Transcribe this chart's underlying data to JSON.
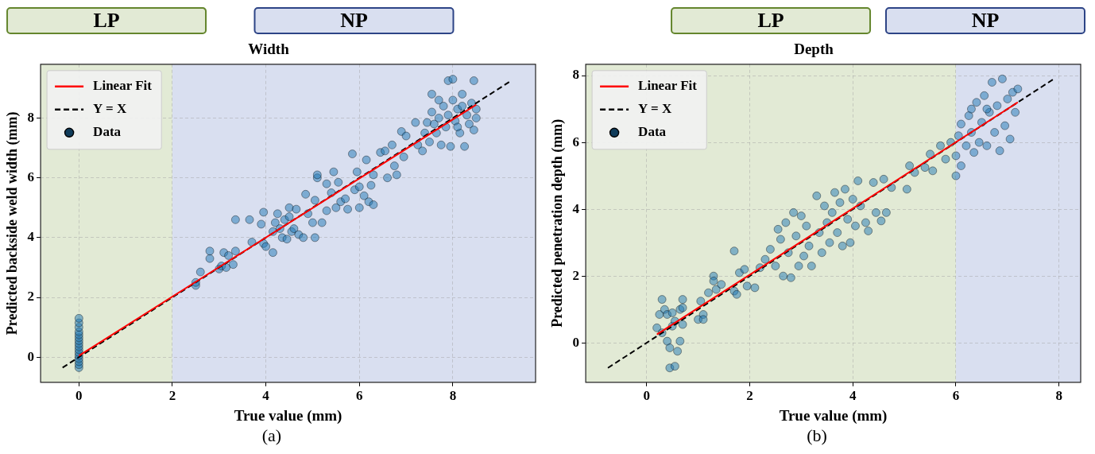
{
  "chart_data": [
    {
      "type": "scatter",
      "title": "Width",
      "xlabel": "True value (mm)",
      "ylabel": "Predicted backside weld width (mm)",
      "annotations": [
        "(a)"
      ],
      "xlim": [
        -0.82,
        9.77
      ],
      "ylim": [
        -0.84,
        9.8
      ],
      "xticks": [
        0,
        2,
        4,
        6,
        8
      ],
      "yticks": [
        0,
        2,
        4,
        6,
        8
      ],
      "grid": true,
      "legend": "top left",
      "bands": [
        {
          "axis": "x",
          "from": -0.82,
          "to": 2,
          "label": "LP",
          "color": "#e2ead5"
        },
        {
          "axis": "x",
          "from": 2,
          "to": 9.77,
          "label": "NP",
          "color": "#d9dff0"
        }
      ],
      "series": [
        {
          "name": "Linear Fit",
          "type": "line",
          "marker": "none",
          "color": "#ff0000",
          "line_style": "solid",
          "x": [
            0,
            8.5
          ],
          "values": [
            0.05,
            8.45
          ]
        },
        {
          "name": "Y = X",
          "type": "line",
          "marker": "none",
          "color": "#000000",
          "line_style": "dashed",
          "x": [
            -0.35,
            9.25
          ],
          "values": [
            -0.35,
            9.25
          ]
        },
        {
          "name": "Data",
          "marker": "circle",
          "color": "#1f77b4",
          "x": [
            0,
            0,
            0,
            0,
            0,
            0,
            0,
            0,
            0,
            0,
            0,
            0,
            0,
            0,
            0,
            0,
            2.5,
            2.5,
            2.6,
            2.8,
            2.8,
            3.0,
            3.05,
            3.1,
            3.15,
            3.2,
            3.3,
            3.35,
            3.35,
            3.65,
            3.7,
            3.9,
            3.95,
            3.95,
            4.0,
            4.15,
            4.15,
            4.2,
            4.25,
            4.3,
            4.35,
            4.4,
            4.45,
            4.5,
            4.5,
            4.55,
            4.6,
            4.65,
            4.7,
            4.8,
            4.85,
            4.9,
            5.0,
            5.05,
            5.05,
            5.1,
            5.1,
            5.2,
            5.3,
            5.3,
            5.4,
            5.45,
            5.5,
            5.55,
            5.6,
            5.7,
            5.75,
            5.85,
            5.9,
            5.95,
            6.0,
            6.0,
            6.1,
            6.15,
            6.2,
            6.25,
            6.3,
            6.3,
            6.45,
            6.55,
            6.6,
            6.7,
            6.75,
            6.8,
            6.9,
            6.95,
            7.0,
            7.2,
            7.25,
            7.35,
            7.4,
            7.45,
            7.5,
            7.55,
            7.55,
            7.6,
            7.65,
            7.7,
            7.75,
            7.8,
            7.85,
            7.9,
            7.95,
            8.0,
            8.0,
            8.05,
            8.1,
            8.15,
            8.2,
            8.25,
            8.3,
            8.35,
            8.4,
            8.45,
            8.45,
            8.5,
            8.5,
            7.9,
            8.1,
            8.2,
            7.7
          ],
          "values": [
            -0.35,
            -0.25,
            -0.15,
            -0.05,
            0.05,
            0.15,
            0.25,
            0.35,
            0.45,
            0.55,
            0.65,
            0.75,
            0.85,
            1.0,
            1.15,
            1.3,
            2.4,
            2.5,
            2.85,
            3.3,
            3.55,
            2.95,
            3.05,
            3.5,
            3.0,
            3.4,
            3.1,
            4.6,
            3.55,
            4.6,
            3.85,
            4.45,
            3.8,
            4.85,
            3.7,
            3.5,
            4.2,
            4.5,
            4.8,
            4.3,
            4.0,
            4.6,
            3.95,
            4.7,
            5.0,
            4.2,
            4.3,
            4.95,
            4.1,
            4.0,
            5.45,
            4.8,
            4.5,
            5.25,
            4.0,
            6.0,
            6.1,
            4.5,
            5.8,
            4.9,
            5.5,
            6.2,
            5.0,
            5.85,
            5.2,
            5.3,
            4.95,
            6.8,
            5.6,
            6.2,
            5.0,
            5.7,
            5.4,
            6.6,
            5.2,
            5.75,
            5.1,
            6.1,
            6.85,
            6.9,
            6.0,
            7.1,
            6.4,
            6.1,
            7.55,
            6.7,
            7.4,
            7.85,
            7.1,
            6.9,
            7.5,
            7.85,
            7.2,
            8.2,
            8.8,
            7.8,
            7.5,
            8.0,
            7.1,
            8.4,
            7.7,
            9.25,
            7.05,
            8.6,
            9.3,
            7.9,
            8.3,
            7.5,
            8.8,
            7.05,
            8.1,
            7.8,
            8.5,
            9.25,
            7.6,
            8.3,
            8.0,
            8.1,
            7.7,
            8.4,
            8.6
          ]
        }
      ]
    },
    {
      "type": "scatter",
      "title": "Depth",
      "xlabel": "True value (mm)",
      "ylabel": "Predicted penetration depth (mm)",
      "annotations": [
        "(b)"
      ],
      "xlim": [
        -1.18,
        8.42
      ],
      "ylim": [
        -1.18,
        8.34
      ],
      "xticks": [
        0,
        2,
        4,
        6,
        8
      ],
      "yticks": [
        0,
        2,
        4,
        6,
        8
      ],
      "grid": true,
      "legend": "top left",
      "bands": [
        {
          "axis": "x",
          "from": -1.18,
          "to": 6,
          "label": "LP",
          "color": "#e2ead5"
        },
        {
          "axis": "x",
          "from": 6,
          "to": 8.42,
          "label": "NP",
          "color": "#d9dff0"
        }
      ],
      "series": [
        {
          "name": "Linear Fit",
          "type": "line",
          "marker": "none",
          "color": "#ff0000",
          "line_style": "solid",
          "x": [
            0.2,
            7.2
          ],
          "values": [
            0.25,
            7.2
          ]
        },
        {
          "name": "Y = X",
          "type": "line",
          "marker": "none",
          "color": "#000000",
          "line_style": "dashed",
          "x": [
            -0.75,
            7.9
          ],
          "values": [
            -0.75,
            7.9
          ]
        },
        {
          "name": "Data",
          "marker": "circle",
          "color": "#1f77b4",
          "x": [
            0.2,
            0.25,
            0.3,
            0.3,
            0.35,
            0.4,
            0.4,
            0.45,
            0.45,
            0.5,
            0.5,
            0.55,
            0.55,
            0.6,
            0.65,
            0.65,
            0.7,
            0.7,
            0.7,
            1.0,
            1.05,
            1.1,
            1.1,
            1.2,
            1.3,
            1.3,
            1.35,
            1.45,
            1.7,
            1.7,
            1.75,
            1.8,
            1.9,
            1.95,
            2.1,
            2.2,
            2.3,
            2.4,
            2.5,
            2.55,
            2.6,
            2.65,
            2.7,
            2.75,
            2.8,
            2.85,
            2.9,
            2.95,
            3.0,
            3.05,
            3.1,
            3.15,
            3.2,
            3.3,
            3.35,
            3.4,
            3.45,
            3.5,
            3.55,
            3.6,
            3.65,
            3.7,
            3.75,
            3.8,
            3.85,
            3.9,
            3.95,
            4.0,
            4.05,
            4.1,
            4.15,
            4.25,
            4.3,
            4.4,
            4.45,
            4.55,
            4.6,
            4.65,
            4.75,
            5.05,
            5.1,
            5.2,
            5.4,
            5.5,
            5.55,
            5.7,
            5.8,
            5.9,
            6.0,
            6.0,
            6.05,
            6.1,
            6.1,
            6.2,
            6.25,
            6.3,
            6.35,
            6.4,
            6.45,
            6.5,
            6.55,
            6.6,
            6.65,
            6.7,
            6.75,
            6.8,
            6.85,
            6.9,
            6.95,
            7.0,
            7.05,
            7.1,
            7.15,
            7.2,
            6.6,
            6.3
          ],
          "values": [
            0.45,
            0.85,
            0.3,
            1.3,
            1.0,
            0.85,
            0.05,
            -0.15,
            -0.75,
            0.9,
            0.5,
            -0.7,
            0.65,
            -0.25,
            0.05,
            1.0,
            1.3,
            0.55,
            1.05,
            0.7,
            1.25,
            0.85,
            0.7,
            1.5,
            2.0,
            1.85,
            1.6,
            1.75,
            2.75,
            1.55,
            1.45,
            2.1,
            2.2,
            1.7,
            1.65,
            2.25,
            2.5,
            2.8,
            2.3,
            3.4,
            3.1,
            2.0,
            3.6,
            2.7,
            1.95,
            3.9,
            3.2,
            2.3,
            3.8,
            2.6,
            3.5,
            2.9,
            2.3,
            4.4,
            3.3,
            2.7,
            4.1,
            3.6,
            3.0,
            3.9,
            4.5,
            3.3,
            4.2,
            2.9,
            4.6,
            3.7,
            3.0,
            4.3,
            3.5,
            4.85,
            4.1,
            3.6,
            3.35,
            4.8,
            3.9,
            3.65,
            4.9,
            3.9,
            4.65,
            4.6,
            5.3,
            5.1,
            5.25,
            5.65,
            5.15,
            5.9,
            5.5,
            6.0,
            5.0,
            5.6,
            6.2,
            6.55,
            5.3,
            5.9,
            6.8,
            6.3,
            5.7,
            7.2,
            6.0,
            6.6,
            7.4,
            5.9,
            6.9,
            7.8,
            6.3,
            7.1,
            5.75,
            7.9,
            6.5,
            7.3,
            6.1,
            7.5,
            6.9,
            7.6,
            7.0,
            7.0
          ]
        }
      ]
    }
  ]
}
